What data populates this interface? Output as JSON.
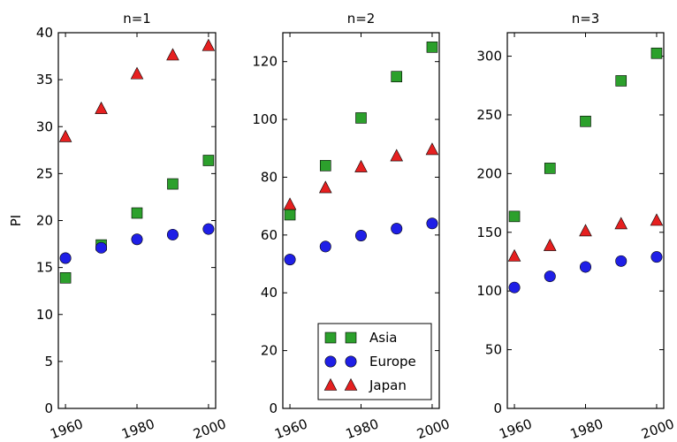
{
  "chart_data": [
    {
      "type": "scatter",
      "title": "n=1",
      "xlabel": "",
      "ylabel": "PI",
      "xlim": [
        1958,
        2002
      ],
      "ylim": [
        0,
        40
      ],
      "xticks": [
        1960,
        1980,
        2000
      ],
      "yticks": [
        0,
        5,
        10,
        15,
        20,
        25,
        30,
        35,
        40
      ],
      "x": [
        1960,
        1970,
        1980,
        1990,
        2000
      ],
      "series": [
        {
          "name": "Asia",
          "marker": "square",
          "color": "#2ca02c",
          "values": [
            13.9,
            17.4,
            20.8,
            23.9,
            26.4
          ]
        },
        {
          "name": "Europe",
          "marker": "circle",
          "color": "#1f1fe6",
          "values": [
            16.0,
            17.1,
            18.0,
            18.5,
            19.1
          ]
        },
        {
          "name": "Japan",
          "marker": "triangle",
          "color": "#e62020",
          "values": [
            28.9,
            31.9,
            35.6,
            37.6,
            38.6
          ]
        }
      ]
    },
    {
      "type": "scatter",
      "title": "n=2",
      "xlabel": "",
      "ylabel": "",
      "xlim": [
        1958,
        2002
      ],
      "ylim": [
        0,
        130
      ],
      "xticks": [
        1960,
        1980,
        2000
      ],
      "yticks": [
        0,
        20,
        40,
        60,
        80,
        100,
        120
      ],
      "x": [
        1960,
        1970,
        1980,
        1990,
        2000
      ],
      "series": [
        {
          "name": "Asia",
          "marker": "square",
          "color": "#2ca02c",
          "values": [
            67,
            84,
            100.5,
            114.8,
            125
          ]
        },
        {
          "name": "Europe",
          "marker": "circle",
          "color": "#1f1fe6",
          "values": [
            51.5,
            56,
            59.8,
            62.2,
            64
          ]
        },
        {
          "name": "Japan",
          "marker": "triangle",
          "color": "#e62020",
          "values": [
            70.5,
            76.3,
            83.5,
            87.3,
            89.5
          ]
        }
      ],
      "legend": {
        "position": "lower-right",
        "entries": [
          "Asia",
          "Europe",
          "Japan"
        ]
      }
    },
    {
      "type": "scatter",
      "title": "n=3",
      "xlabel": "",
      "ylabel": "",
      "xlim": [
        1958,
        2002
      ],
      "ylim": [
        0,
        320
      ],
      "xticks": [
        1960,
        1980,
        2000
      ],
      "yticks": [
        0,
        50,
        100,
        150,
        200,
        250,
        300
      ],
      "x": [
        1960,
        1970,
        1980,
        1990,
        2000
      ],
      "series": [
        {
          "name": "Asia",
          "marker": "square",
          "color": "#2ca02c",
          "values": [
            163.5,
            204.5,
            244.5,
            279,
            302.5
          ]
        },
        {
          "name": "Europe",
          "marker": "circle",
          "color": "#1f1fe6",
          "values": [
            103,
            112.5,
            120.5,
            125.5,
            129
          ]
        },
        {
          "name": "Japan",
          "marker": "triangle",
          "color": "#e62020",
          "values": [
            129.5,
            138.5,
            151,
            157,
            160
          ]
        }
      ]
    }
  ]
}
